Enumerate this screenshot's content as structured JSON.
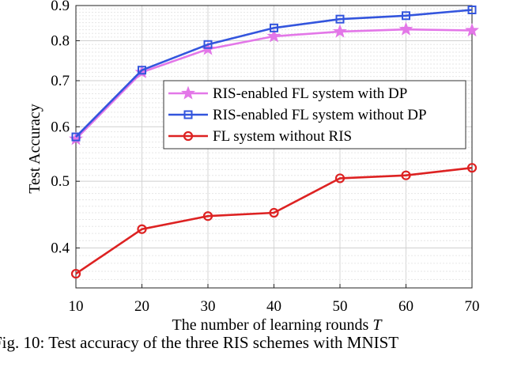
{
  "chart_data": {
    "type": "line",
    "xlabel": "The number of learning rounds",
    "xlabel_var": "T",
    "ylabel": "Test Accuracy",
    "xlim": [
      10,
      70
    ],
    "ylim": [
      0.35,
      0.9
    ],
    "yscale": "log",
    "x": [
      10,
      20,
      30,
      40,
      50,
      60,
      70
    ],
    "xticks": [
      "10",
      "20",
      "30",
      "40",
      "50",
      "60",
      "70"
    ],
    "yticks": [
      {
        "value": 0.4,
        "label": "0.4"
      },
      {
        "value": 0.5,
        "label": "0.5"
      },
      {
        "value": 0.6,
        "label": "0.6"
      },
      {
        "value": 0.7,
        "label": "0.7"
      },
      {
        "value": 0.8,
        "label": "0.8"
      },
      {
        "value": 0.9,
        "label": "0.9"
      }
    ],
    "grid": true,
    "legend_position": "center-right",
    "series": [
      {
        "name": "RIS-enabled FL system with DP",
        "color": "#e377e8",
        "marker": "star",
        "values": [
          0.576,
          0.72,
          0.778,
          0.812,
          0.825,
          0.831,
          0.828
        ]
      },
      {
        "name": "RIS-enabled FL system without DP",
        "color": "#3355dd",
        "marker": "square",
        "values": [
          0.58,
          0.725,
          0.79,
          0.835,
          0.86,
          0.87,
          0.887
        ]
      },
      {
        "name": "FL system without RIS",
        "color": "#dd2222",
        "marker": "circle",
        "values": [
          0.367,
          0.426,
          0.445,
          0.45,
          0.505,
          0.51,
          0.523
        ]
      }
    ]
  },
  "caption": "Fig. 10: Test accuracy of the three RIS schemes with MNIST"
}
